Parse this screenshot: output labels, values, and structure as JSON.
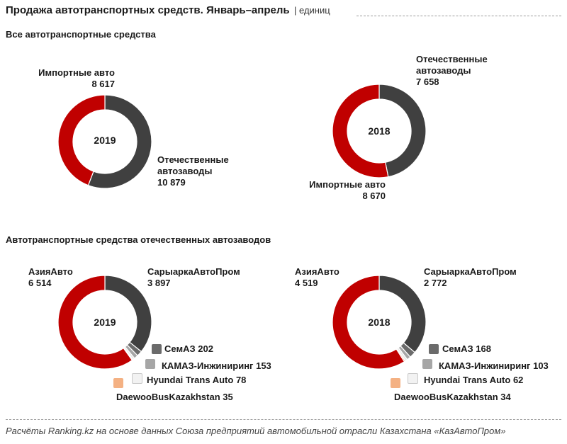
{
  "header": {
    "title": "Продажа автотранспортных средств. Январь–апрель",
    "unit": "| единиц"
  },
  "sections": {
    "all": "Все автотранспортные средства",
    "domestic": "Автотранспортные средства отечественных автозаводов"
  },
  "footer": "Расчёты Ranking.kz на основе данных Союза предприятий автомобильной отрасли Казахстана «КазАвтоПром»",
  "chart_data": [
    {
      "type": "pie",
      "center_label": "2019",
      "slices": [
        {
          "name": "Отечественные автозаводы",
          "value": 10879,
          "value_label": "10 879",
          "color": "#404040"
        },
        {
          "name": "Импортные авто",
          "value": 8617,
          "value_label": "8 617",
          "color": "#c00000"
        }
      ]
    },
    {
      "type": "pie",
      "center_label": "2018",
      "slices": [
        {
          "name": "Отечественные автозаводы",
          "value": 7658,
          "value_label": "7 658",
          "color": "#404040"
        },
        {
          "name": "Импортные авто",
          "value": 8670,
          "value_label": "8 670",
          "color": "#c00000"
        }
      ]
    },
    {
      "type": "pie",
      "center_label": "2019",
      "slices": [
        {
          "name": "СарыаркаАвтоПром",
          "value": 3897,
          "value_label": "3 897",
          "color": "#404040"
        },
        {
          "name": "СемАЗ",
          "value": 202,
          "value_label": "202",
          "color": "#6b6b6b"
        },
        {
          "name": "КАМАЗ-Инжиниринг",
          "value": 153,
          "value_label": "153",
          "color": "#a6a6a6"
        },
        {
          "name": "Hyundai Trans Auto",
          "value": 78,
          "value_label": "78",
          "color": "#e8e8e8"
        },
        {
          "name": "DaewooBusKazakhstan",
          "value": 35,
          "value_label": "35",
          "color": "#f4b183"
        },
        {
          "name": "АзияАвто",
          "value": 6514,
          "value_label": "6 514",
          "color": "#c00000"
        }
      ]
    },
    {
      "type": "pie",
      "center_label": "2018",
      "slices": [
        {
          "name": "СарыаркаАвтоПром",
          "value": 2772,
          "value_label": "2 772",
          "color": "#404040"
        },
        {
          "name": "СемАЗ",
          "value": 168,
          "value_label": "168",
          "color": "#6b6b6b"
        },
        {
          "name": "КАМАЗ-Инжиниринг",
          "value": 103,
          "value_label": "103",
          "color": "#a6a6a6"
        },
        {
          "name": "Hyundai Trans Auto",
          "value": 62,
          "value_label": "62",
          "color": "#e8e8e8"
        },
        {
          "name": "DaewooBusKazakhstan",
          "value": 34,
          "value_label": "34",
          "color": "#f4b183"
        },
        {
          "name": "АзияАвто",
          "value": 4519,
          "value_label": "4 519",
          "color": "#c00000"
        }
      ]
    }
  ]
}
